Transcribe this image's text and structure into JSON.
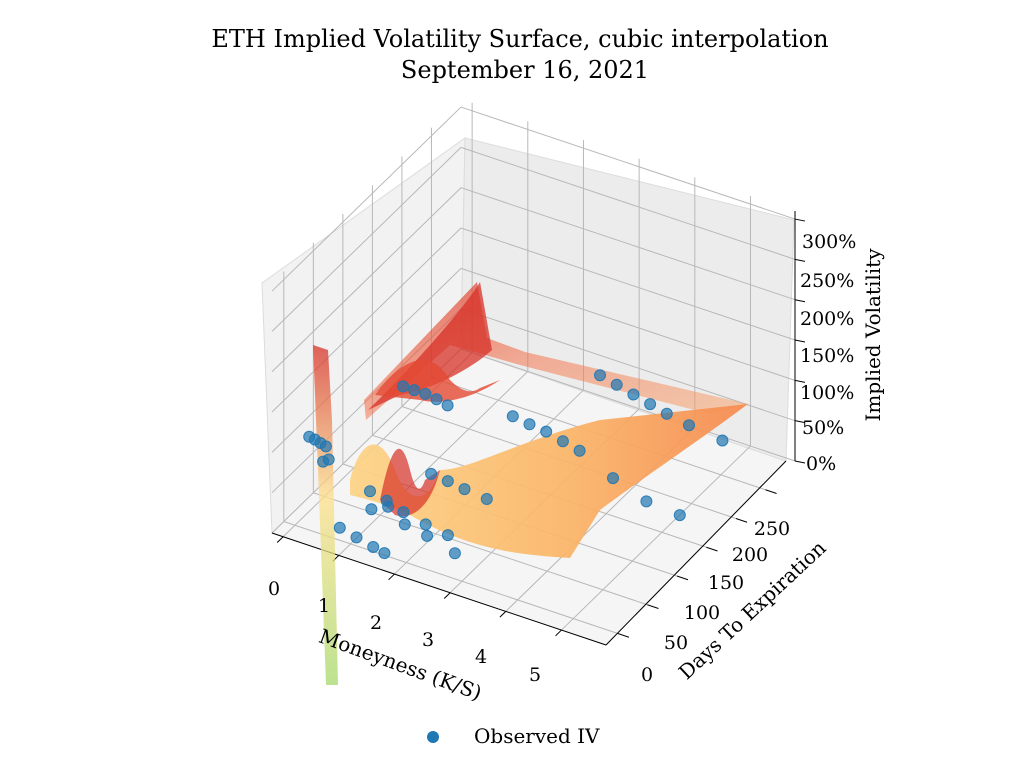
{
  "chart_data": {
    "type": "surface3d",
    "title": "ETH Implied Volatility Surface, cubic interpolation",
    "subtitle": "September 16, 2021",
    "xlabel": "Moneyness (K/S)",
    "ylabel": "Days To Expiration",
    "zlabel": "Implied Volatility",
    "x_ticks": [
      "0",
      "1",
      "2",
      "3",
      "4",
      "5"
    ],
    "y_ticks": [
      "0",
      "50",
      "100",
      "150",
      "200",
      "250"
    ],
    "z_ticks": [
      "0%",
      "50%",
      "100%",
      "150%",
      "200%",
      "250%",
      "300%"
    ],
    "xlim": [
      -0.2,
      5.8
    ],
    "ylim": [
      -20,
      300
    ],
    "zlim": [
      0,
      3.1
    ],
    "legend": {
      "label": "Observed IV",
      "placement": "bottom-center"
    },
    "colormap": "Spectral (red high, yellow/green low)",
    "point_color": "#1f77b4",
    "observed_iv": [
      {
        "x": 0.25,
        "y": 0.6,
        "z": 1.15
      },
      {
        "x": 0.35,
        "y": 0.6,
        "z": 1.14
      },
      {
        "x": 0.45,
        "y": 0.6,
        "z": 1.12
      },
      {
        "x": 0.55,
        "y": 0.6,
        "z": 1.1
      },
      {
        "x": 0.6,
        "y": 0.6,
        "z": 0.95
      },
      {
        "x": 0.5,
        "y": 0.6,
        "z": 0.9
      },
      {
        "x": 0.8,
        "y": 0.6,
        "z": 0.15
      },
      {
        "x": 1.1,
        "y": 0.6,
        "z": 0.1
      },
      {
        "x": 1.4,
        "y": 0.6,
        "z": 0.05
      },
      {
        "x": 1.6,
        "y": 0.6,
        "z": 0.02
      },
      {
        "x": 1.3,
        "y": 7,
        "z": 0.45
      },
      {
        "x": 1.6,
        "y": 7,
        "z": 0.55
      },
      {
        "x": 1.9,
        "y": 7,
        "z": 0.4
      },
      {
        "x": 2.3,
        "y": 7,
        "z": 0.35
      },
      {
        "x": 2.8,
        "y": 7,
        "z": 0.25
      },
      {
        "x": 1.2,
        "y": 14,
        "z": 0.6
      },
      {
        "x": 1.5,
        "y": 14,
        "z": 0.55
      },
      {
        "x": 1.8,
        "y": 14,
        "z": 0.48
      },
      {
        "x": 2.2,
        "y": 14,
        "z": 0.42
      },
      {
        "x": 2.6,
        "y": 14,
        "z": 0.38
      },
      {
        "x": 2.0,
        "y": 42,
        "z": 0.8
      },
      {
        "x": 2.3,
        "y": 42,
        "z": 0.78
      },
      {
        "x": 2.6,
        "y": 42,
        "z": 0.75
      },
      {
        "x": 3.0,
        "y": 42,
        "z": 0.72
      },
      {
        "x": 1.2,
        "y": 70,
        "z": 1.5
      },
      {
        "x": 1.4,
        "y": 70,
        "z": 1.5
      },
      {
        "x": 1.6,
        "y": 70,
        "z": 1.5
      },
      {
        "x": 1.8,
        "y": 70,
        "z": 1.48
      },
      {
        "x": 2.0,
        "y": 70,
        "z": 1.45
      },
      {
        "x": 2.8,
        "y": 105,
        "z": 1.25
      },
      {
        "x": 3.1,
        "y": 105,
        "z": 1.22
      },
      {
        "x": 3.4,
        "y": 105,
        "z": 1.2
      },
      {
        "x": 3.7,
        "y": 105,
        "z": 1.15
      },
      {
        "x": 4.0,
        "y": 105,
        "z": 1.1
      },
      {
        "x": 4.6,
        "y": 105,
        "z": 0.9
      },
      {
        "x": 3.4,
        "y": 196,
        "z": 1.25
      },
      {
        "x": 3.7,
        "y": 196,
        "z": 1.2
      },
      {
        "x": 4.0,
        "y": 196,
        "z": 1.15
      },
      {
        "x": 4.3,
        "y": 196,
        "z": 1.1
      },
      {
        "x": 4.6,
        "y": 196,
        "z": 1.05
      },
      {
        "x": 5.0,
        "y": 196,
        "z": 1.0
      },
      {
        "x": 5.6,
        "y": 196,
        "z": 0.95
      },
      {
        "x": 5.2,
        "y": 105,
        "z": 0.75
      },
      {
        "x": 5.8,
        "y": 105,
        "z": 0.72
      }
    ]
  }
}
